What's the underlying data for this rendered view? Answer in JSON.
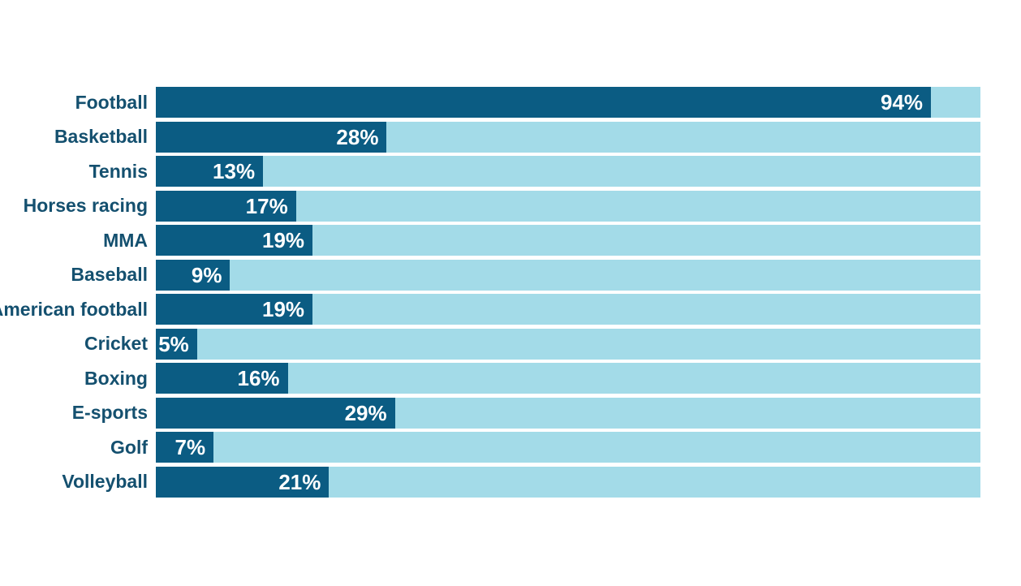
{
  "chart_data": {
    "type": "bar",
    "orientation": "horizontal",
    "title": "",
    "xlabel": "",
    "ylabel": "",
    "xlim": [
      0,
      100
    ],
    "grid": false,
    "legend": false,
    "categories": [
      "Football",
      "Basketball",
      "Tennis",
      "Horses racing",
      "MMA",
      "Baseball",
      "American football",
      "Cricket",
      "Boxing",
      "E-sports",
      "Golf",
      "Volleyball"
    ],
    "values": [
      94,
      28,
      13,
      17,
      19,
      9,
      19,
      5,
      16,
      29,
      7,
      21
    ],
    "value_labels": [
      "94%",
      "28%",
      "13%",
      "17%",
      "19%",
      "9%",
      "19%",
      "5%",
      "16%",
      "29%",
      "7%",
      "21%"
    ],
    "colors": {
      "bar": "#0b5c83",
      "track": "#a3dbe8",
      "category_text": "#14506f",
      "value_text": "#ffffff",
      "background": "#ffffff"
    }
  }
}
